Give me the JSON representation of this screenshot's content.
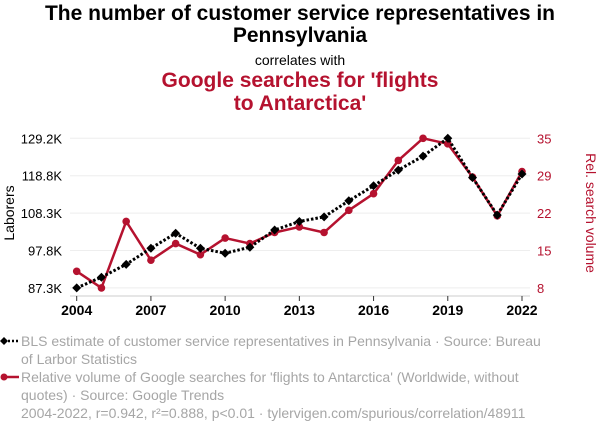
{
  "header": {
    "title": "The number of customer service representatives in Pennsylvania",
    "connector": "correlates with",
    "subtitle": "Google searches for 'flights to Antarctica'"
  },
  "colors": {
    "series1": "#000000",
    "series2": "#b5122f",
    "legend_text": "#a6a6a6",
    "grid": "#eeeeee"
  },
  "legend": {
    "items": [
      {
        "icon": "black-dotted-line-diamond-icon",
        "label": "BLS estimate of customer service representatives in Pennsylvania · Source: Bureau of Larbor Statistics"
      },
      {
        "icon": "red-line-circle-icon",
        "label": "Relative volume of Google searches for 'flights to Antarctica' (Worldwide, without quotes) · Source: Google Trends"
      }
    ]
  },
  "footer": {
    "stats": "2004-2022, r=0.942, r²=0.888, p<0.01 · tylervigen.com/spurious/correlation/48911"
  },
  "chart_data": {
    "type": "line",
    "title": "The number of customer service representatives in Pennsylvania correlates with Google searches for 'flights to Antarctica'",
    "x": [
      2004,
      2005,
      2006,
      2007,
      2008,
      2009,
      2010,
      2011,
      2012,
      2013,
      2014,
      2015,
      2016,
      2017,
      2018,
      2019,
      2020,
      2021,
      2022
    ],
    "xticks": [
      "2004",
      "2007",
      "2010",
      "2013",
      "2016",
      "2019",
      "2022"
    ],
    "xtick_values": [
      2004,
      2007,
      2010,
      2013,
      2016,
      2019,
      2022
    ],
    "xlim": [
      2004,
      2022
    ],
    "grid": true,
    "y_left": {
      "label": "Laborers",
      "ticks": [
        "87.3K",
        "97.8K",
        "108.3K",
        "118.8K",
        "129.2K"
      ],
      "tick_values": [
        87300,
        97775,
        108250,
        118725,
        129200
      ],
      "lim": [
        87300,
        129200
      ]
    },
    "y_right": {
      "label": "Rel. search volume",
      "ticks": [
        "8",
        "15",
        "22",
        "29",
        "35"
      ],
      "tick_values": [
        8,
        14.75,
        21.5,
        28.25,
        35
      ],
      "lim": [
        8,
        35
      ]
    },
    "series": [
      {
        "name": "BLS estimate of customer service representatives in Pennsylvania",
        "axis": "left",
        "style": "dotted-diamond",
        "values": [
          87300,
          90300,
          93900,
          98400,
          102600,
          98400,
          97000,
          98700,
          103500,
          105900,
          107200,
          111700,
          115900,
          120300,
          124200,
          129200,
          118200,
          107700,
          119200
        ]
      },
      {
        "name": "Relative volume of Google searches for 'flights to Antarctica'",
        "axis": "right",
        "style": "solid-circle",
        "values": [
          11,
          8,
          20,
          13,
          16,
          14,
          17,
          16,
          18,
          19,
          18,
          22,
          25,
          31,
          35,
          34,
          28,
          21,
          29
        ]
      }
    ],
    "legend_position": "bottom"
  }
}
